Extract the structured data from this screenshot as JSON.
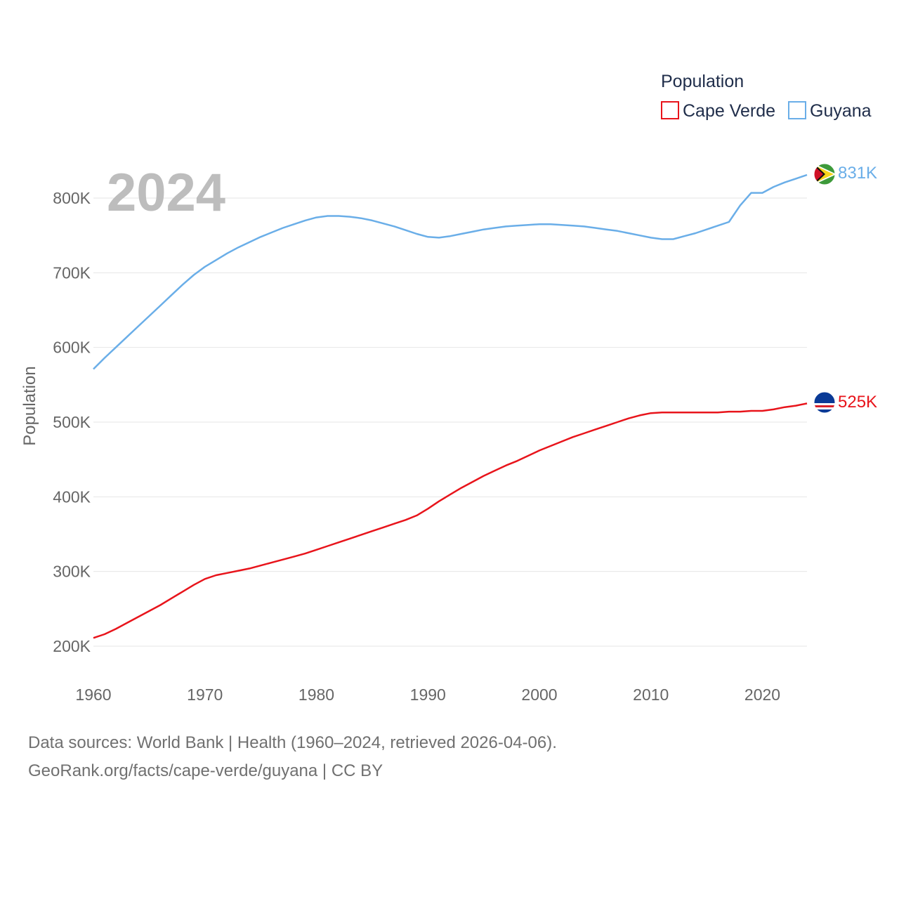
{
  "chart_data": {
    "type": "line",
    "legend_title": "Population",
    "ylabel": "Population",
    "xlabel": "",
    "current_year_label": "2024",
    "xlim": [
      1960,
      2024
    ],
    "ylim": [
      190000,
      850000
    ],
    "x_ticks": [
      1960,
      1970,
      1980,
      1990,
      2000,
      2010,
      2020
    ],
    "x_tick_labels": [
      "1960",
      "1970",
      "1980",
      "1990",
      "2000",
      "2010",
      "2020"
    ],
    "y_ticks": [
      200000,
      300000,
      400000,
      500000,
      600000,
      700000,
      800000
    ],
    "y_tick_labels": [
      "200K",
      "300K",
      "400K",
      "500K",
      "600K",
      "700K",
      "800K"
    ],
    "x": [
      1960,
      1961,
      1962,
      1963,
      1964,
      1965,
      1966,
      1967,
      1968,
      1969,
      1970,
      1971,
      1972,
      1973,
      1974,
      1975,
      1976,
      1977,
      1978,
      1979,
      1980,
      1981,
      1982,
      1983,
      1984,
      1985,
      1986,
      1987,
      1988,
      1989,
      1990,
      1991,
      1992,
      1993,
      1994,
      1995,
      1996,
      1997,
      1998,
      1999,
      2000,
      2001,
      2002,
      2003,
      2004,
      2005,
      2006,
      2007,
      2008,
      2009,
      2010,
      2011,
      2012,
      2013,
      2014,
      2015,
      2016,
      2017,
      2018,
      2019,
      2020,
      2021,
      2022,
      2023,
      2024
    ],
    "series": [
      {
        "name": "Cape Verde",
        "color": "#e8141b",
        "flag_icon": "cape-verde-flag-icon",
        "end_label": "525K",
        "values": [
          211000,
          216000,
          223000,
          231000,
          239000,
          247000,
          255000,
          264000,
          273000,
          282000,
          290000,
          295000,
          298000,
          301000,
          304000,
          308000,
          312000,
          316000,
          320000,
          324000,
          329000,
          334000,
          339000,
          344000,
          349000,
          354000,
          359000,
          364000,
          369000,
          375000,
          384000,
          394000,
          403000,
          412000,
          420000,
          428000,
          435000,
          442000,
          448000,
          455000,
          462000,
          468000,
          474000,
          480000,
          485000,
          490000,
          495000,
          500000,
          505000,
          509000,
          512000,
          513000,
          513000,
          513000,
          513000,
          513000,
          513000,
          514000,
          514000,
          515000,
          515000,
          517000,
          520000,
          522000,
          525000
        ]
      },
      {
        "name": "Guyana",
        "color": "#6aaee8",
        "flag_icon": "guyana-flag-icon",
        "end_label": "831K",
        "values": [
          571000,
          586000,
          600000,
          614000,
          628000,
          642000,
          656000,
          670000,
          684000,
          697000,
          708000,
          717000,
          726000,
          734000,
          741000,
          748000,
          754000,
          760000,
          765000,
          770000,
          774000,
          776000,
          776000,
          775000,
          773000,
          770000,
          766000,
          762000,
          757000,
          752000,
          748000,
          747000,
          749000,
          752000,
          755000,
          758000,
          760000,
          762000,
          763000,
          764000,
          765000,
          765000,
          764000,
          763000,
          762000,
          760000,
          758000,
          756000,
          753000,
          750000,
          747000,
          745000,
          745000,
          749000,
          753000,
          758000,
          763000,
          768000,
          790000,
          807000,
          807000,
          815000,
          821000,
          826000,
          831000
        ]
      }
    ],
    "sources_text": "Data sources: World Bank | Health (1960–2024, retrieved 2026-04-06).",
    "credit_text": "GeoRank.org/facts/cape-verde/guyana | CC BY"
  }
}
